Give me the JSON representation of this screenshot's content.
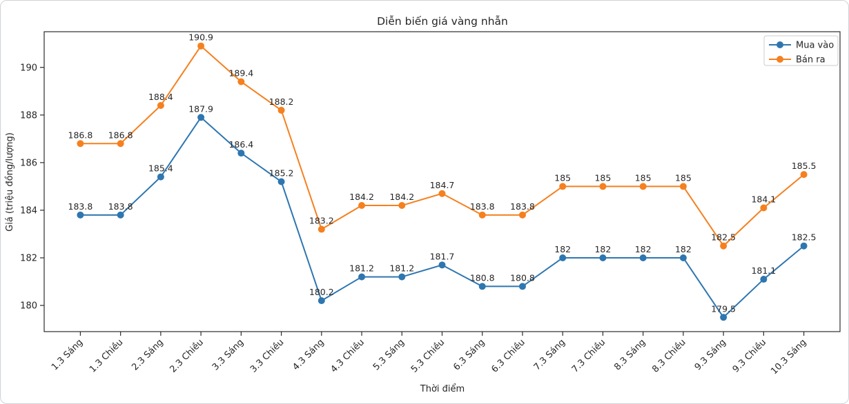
{
  "figure": {
    "title": "Diễn biến giá vàng nhẫn",
    "xlabel": "Thời điểm",
    "ylabel": "Giá (triệu đồng/lượng)"
  },
  "legend": {
    "items": [
      {
        "label": "Mua vào",
        "color": "#2e76b0"
      },
      {
        "label": "Bán ra",
        "color": "#f5801f"
      }
    ]
  },
  "chart_data": {
    "type": "line",
    "title": "Diễn biến giá vàng nhẫn",
    "xlabel": "Thời điểm",
    "ylabel": "Giá (triệu đồng/lượng)",
    "categories": [
      "1.3 Sáng",
      "1.3 Chiều",
      "2.3 Sáng",
      "2.3 Chiều",
      "3.3 Sáng",
      "3.3 Chiều",
      "4.3 Sáng",
      "4.3 Chiều",
      "5.3 Sáng",
      "5.3 Chiều",
      "6.3 Sáng",
      "6.3 Chiều",
      "7.3 Sáng",
      "7.3 Chiều",
      "8.3 Sáng",
      "8.3 Chiều",
      "9.3 Sáng",
      "9.3 Chiều",
      "10.3 Sáng"
    ],
    "series": [
      {
        "name": "Mua vào",
        "color": "#2e76b0",
        "values": [
          183.8,
          183.8,
          185.4,
          187.9,
          186.4,
          185.2,
          180.2,
          181.2,
          181.2,
          181.7,
          180.8,
          180.8,
          182,
          182,
          182,
          182,
          179.5,
          181.1,
          182.5
        ]
      },
      {
        "name": "Bán ra",
        "color": "#f5801f",
        "values": [
          186.8,
          186.8,
          188.4,
          190.9,
          189.4,
          188.2,
          183.2,
          184.2,
          184.2,
          184.7,
          183.8,
          183.8,
          185,
          185,
          185,
          185,
          182.5,
          184.1,
          185.5
        ]
      }
    ],
    "yticks": [
      180,
      182,
      184,
      186,
      188,
      190
    ],
    "ylim": [
      178.9,
      191.5
    ],
    "grid": false,
    "legend_position": "upper right",
    "marker": "circle",
    "point_labels": true
  }
}
